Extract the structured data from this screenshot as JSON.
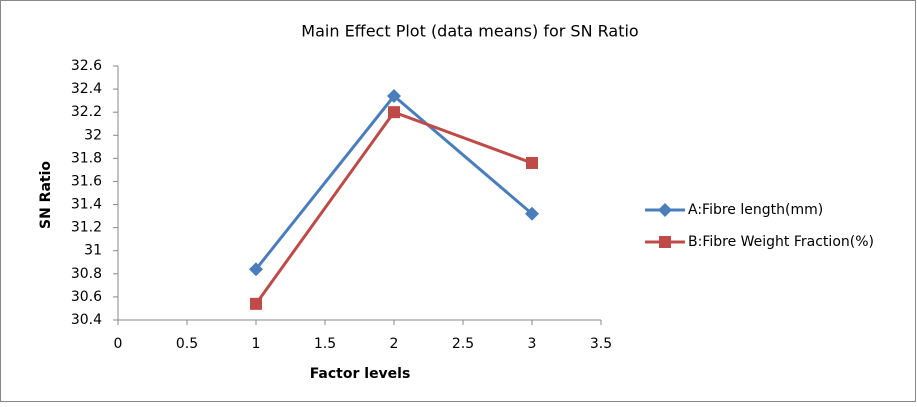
{
  "chart_data": {
    "type": "line",
    "title": "Main Effect Plot (data means) for SN Ratio",
    "x_label": "Factor levels",
    "y_label": "SN Ratio",
    "x": [
      1,
      2,
      3
    ],
    "series": [
      {
        "name": "A:Fibre length(mm)",
        "color": "#4a7ebb",
        "marker": "diamond",
        "values": [
          30.84,
          32.34,
          31.32
        ]
      },
      {
        "name": "B:Fibre Weight Fraction(%)",
        "color": "#be4b48",
        "marker": "square",
        "values": [
          30.54,
          32.2,
          31.76
        ]
      }
    ],
    "xlim": [
      0,
      3.5
    ],
    "xticks": [
      0,
      0.5,
      1,
      1.5,
      2,
      2.5,
      3,
      3.5
    ],
    "ylim": [
      30.4,
      32.6
    ],
    "yticks": [
      30.4,
      30.6,
      30.8,
      31,
      31.2,
      31.4,
      31.6,
      31.8,
      32,
      32.2,
      32.4,
      32.6
    ],
    "grid": false,
    "legend": "right"
  }
}
